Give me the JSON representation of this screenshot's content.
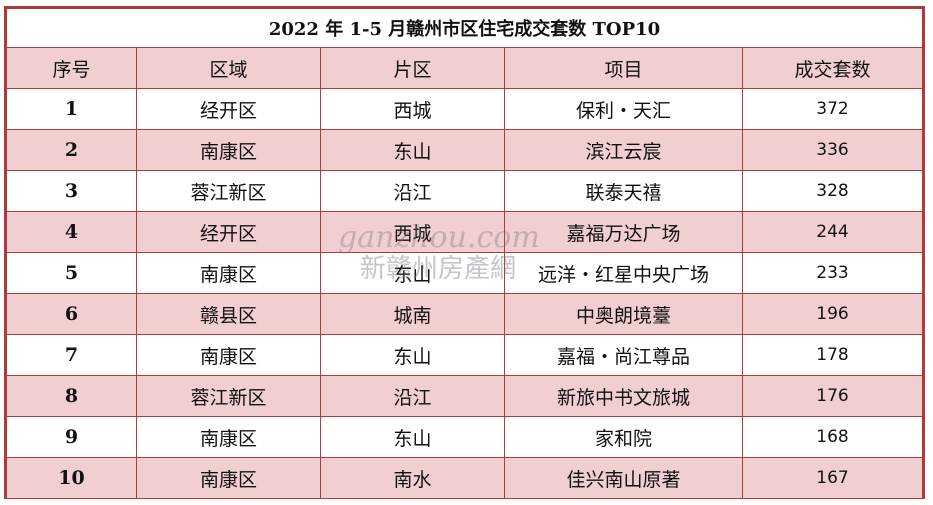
{
  "title": "2022 年 1-5 月赣州市区住宅成交套数 TOP10",
  "headers": [
    "序号",
    "区域",
    "片区",
    "项目",
    "成交套数"
  ],
  "rows": [
    {
      "rank": "1",
      "district": "经开区",
      "area": "西城",
      "project": "保利・天汇",
      "units": "372"
    },
    {
      "rank": "2",
      "district": "南康区",
      "area": "东山",
      "project": "滨江云宸",
      "units": "336"
    },
    {
      "rank": "3",
      "district": "蓉江新区",
      "area": "沿江",
      "project": "联泰天禧",
      "units": "328"
    },
    {
      "rank": "4",
      "district": "经开区",
      "area": "西城",
      "project": "嘉福万达广场",
      "units": "244"
    },
    {
      "rank": "5",
      "district": "南康区",
      "area": "东山",
      "project": "远洋・红星中央广场",
      "units": "233"
    },
    {
      "rank": "6",
      "district": "赣县区",
      "area": "城南",
      "project": "中奥朗境薹",
      "units": "196"
    },
    {
      "rank": "7",
      "district": "南康区",
      "area": "东山",
      "project": "嘉福・尚江尊品",
      "units": "178"
    },
    {
      "rank": "8",
      "district": "蓉江新区",
      "area": "沿江",
      "project": "新旅中书文旅城",
      "units": "176"
    },
    {
      "rank": "9",
      "district": "南康区",
      "area": "东山",
      "project": "家和院",
      "units": "168"
    },
    {
      "rank": "10",
      "district": "南康区",
      "area": "南水",
      "project": "佳兴南山原著",
      "units": "167"
    }
  ],
  "watermark": {
    "line1": "ganzhou.com",
    "line2": "新赣州房產網"
  }
}
